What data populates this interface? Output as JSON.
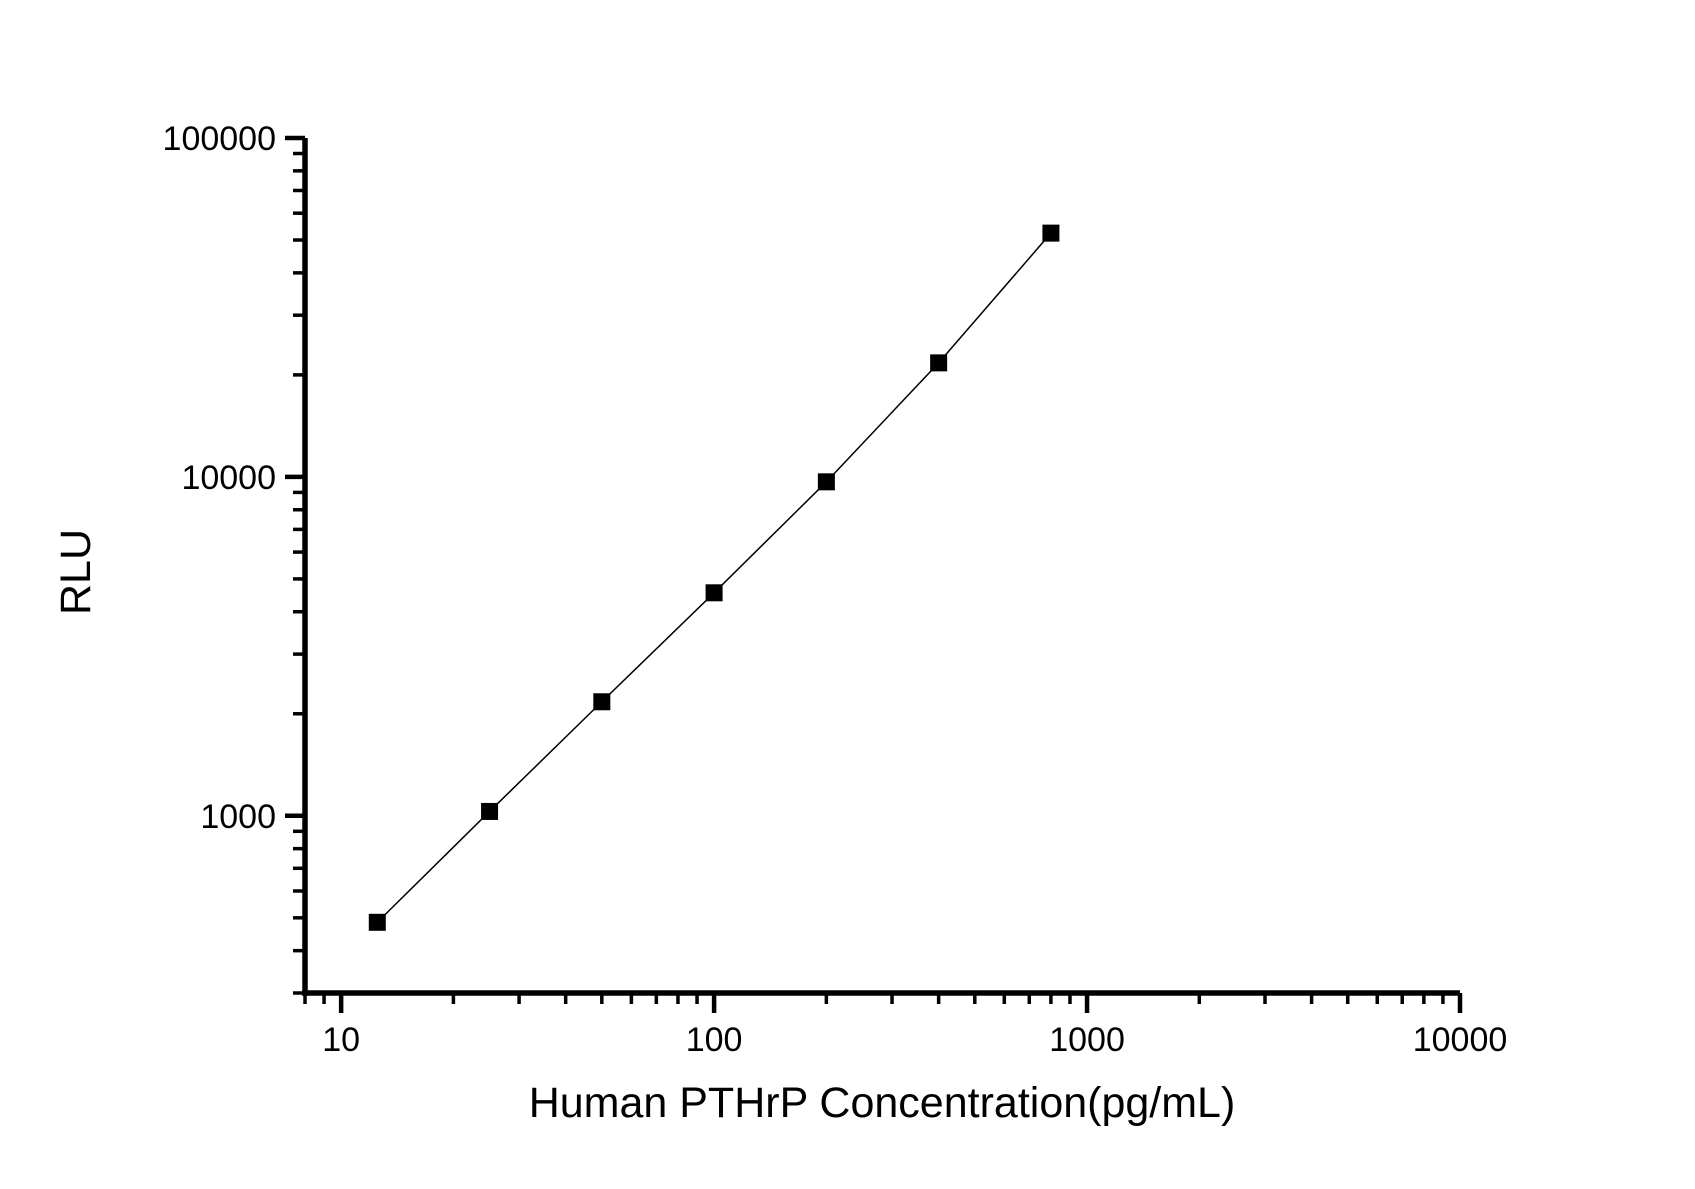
{
  "figure": {
    "background_color": "#ffffff",
    "axis_color": "#000000",
    "marker_color": "#000000",
    "line_color": "#000000"
  },
  "chart_data": {
    "type": "line",
    "subtype": "scatter-line-standard-curve",
    "title": "",
    "xlabel": "Human PTHrP Concentration(pg/mL)",
    "ylabel": "RLU",
    "x_scale": "log",
    "y_scale": "log",
    "xlim": [
      8,
      10000
    ],
    "ylim": [
      300,
      100000
    ],
    "grid": false,
    "legend": "none",
    "x_major_ticks": [
      {
        "value": 10,
        "label": "10"
      },
      {
        "value": 100,
        "label": "100"
      },
      {
        "value": 1000,
        "label": "1000"
      },
      {
        "value": 10000,
        "label": "10000"
      }
    ],
    "y_major_ticks": [
      {
        "value": 1000,
        "label": "1000"
      },
      {
        "value": 10000,
        "label": "10000"
      },
      {
        "value": 100000,
        "label": "100000"
      }
    ],
    "series": [
      {
        "name": "standard-curve",
        "marker": "square",
        "marker_size_px": 17,
        "marker_color": "#000000",
        "line_color": "#000000",
        "x": [
          12.5,
          25,
          50,
          100,
          200,
          400,
          800
        ],
        "y": [
          485,
          1030,
          2170,
          4550,
          9670,
          21700,
          52400
        ]
      }
    ]
  }
}
